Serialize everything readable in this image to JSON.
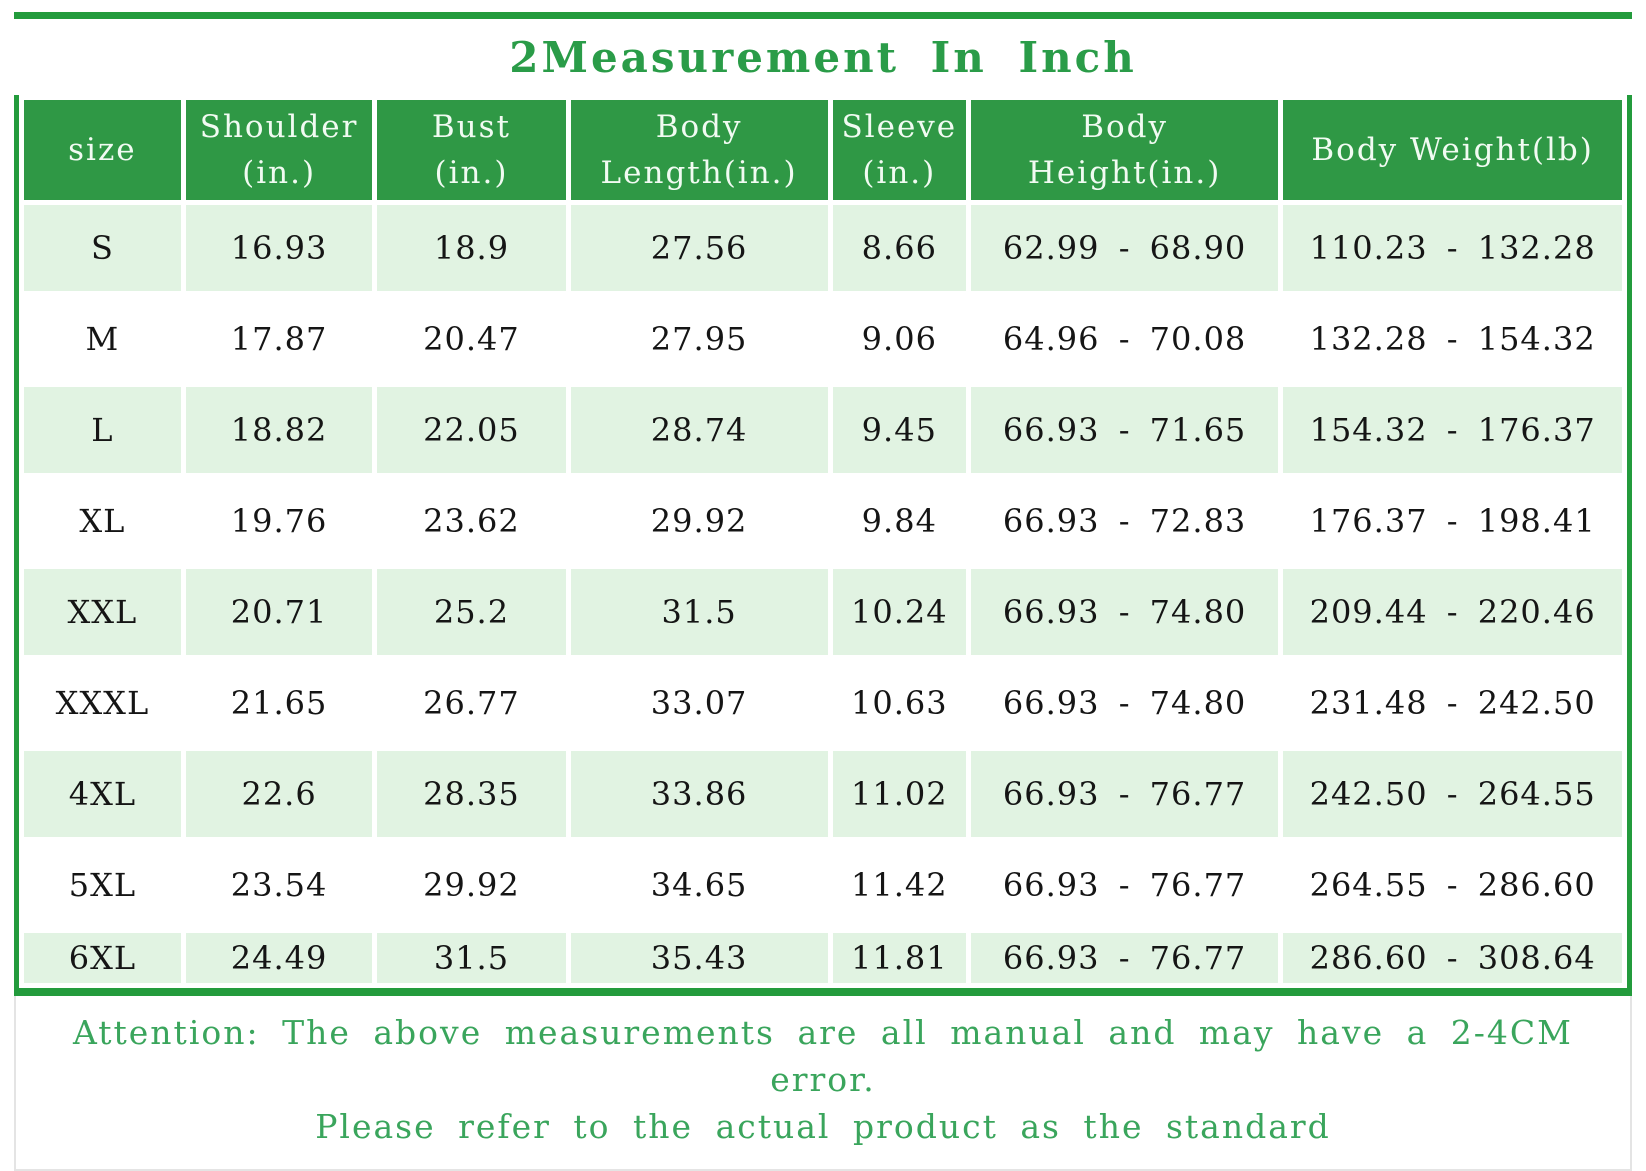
{
  "page": {
    "title": "2Measurement In Inch"
  },
  "colors": {
    "border_green": "#239b3c",
    "header_green": "#2f9845",
    "row_light_green": "#e1f3e2",
    "title_green": "#2a9c48",
    "footer_text_green": "#3aa55c",
    "cell_text": "#151515",
    "header_text": "#f1fbf2"
  },
  "table": {
    "columns": [
      {
        "key": "size",
        "lines": [
          "size"
        ]
      },
      {
        "key": "shoulder",
        "lines": [
          "Shoulder",
          "(in.)"
        ]
      },
      {
        "key": "bust",
        "lines": [
          "Bust",
          "(in.)"
        ]
      },
      {
        "key": "body_length",
        "lines": [
          "Body",
          "Length(in.)"
        ]
      },
      {
        "key": "sleeve",
        "lines": [
          "Sleeve",
          "(in.)"
        ]
      },
      {
        "key": "body_height",
        "lines": [
          "Body",
          "Height(in.)"
        ]
      },
      {
        "key": "body_weight",
        "lines": [
          "Body Weight(lb)"
        ]
      }
    ],
    "rows": [
      {
        "size": "S",
        "values": [
          "16.93",
          "18.9",
          "27.56",
          "8.66",
          "62.99 - 68.90",
          "110.23 - 132.28"
        ]
      },
      {
        "size": "M",
        "values": [
          "17.87",
          "20.47",
          "27.95",
          "9.06",
          "64.96 - 70.08",
          "132.28 - 154.32"
        ]
      },
      {
        "size": "L",
        "values": [
          "18.82",
          "22.05",
          "28.74",
          "9.45",
          "66.93 - 71.65",
          "154.32 - 176.37"
        ]
      },
      {
        "size": "XL",
        "values": [
          "19.76",
          "23.62",
          "29.92",
          "9.84",
          "66.93 - 72.83",
          "176.37 - 198.41"
        ]
      },
      {
        "size": "XXL",
        "values": [
          "20.71",
          "25.2",
          "31.5",
          "10.24",
          "66.93 - 74.80",
          "209.44 - 220.46"
        ]
      },
      {
        "size": "XXXL",
        "values": [
          "21.65",
          "26.77",
          "33.07",
          "10.63",
          "66.93 - 74.80",
          "231.48 - 242.50"
        ]
      },
      {
        "size": "4XL",
        "values": [
          "22.6",
          "28.35",
          "33.86",
          "11.02",
          "66.93 - 76.77",
          "242.50 - 264.55"
        ]
      },
      {
        "size": "5XL",
        "values": [
          "23.54",
          "29.92",
          "34.65",
          "11.42",
          "66.93 - 76.77",
          "264.55 - 286.60"
        ]
      },
      {
        "size": "6XL",
        "values": [
          "24.49",
          "31.5",
          "35.43",
          "11.81",
          "66.93 - 76.77",
          "286.60 - 308.64"
        ]
      }
    ]
  },
  "footer": {
    "line1": "Attention: The above measurements are all manual and may have a 2-4CM error.",
    "line2": "Please refer to the actual product as the standard"
  },
  "chart_data": {
    "type": "table",
    "title": "2Measurement In Inch",
    "columns": [
      "size",
      "Shoulder (in.)",
      "Bust (in.)",
      "Body Length(in.)",
      "Sleeve (in.)",
      "Body Height(in.)",
      "Body Weight(lb)"
    ],
    "rows": [
      [
        "S",
        "16.93",
        "18.9",
        "27.56",
        "8.66",
        "62.99 - 68.90",
        "110.23 - 132.28"
      ],
      [
        "M",
        "17.87",
        "20.47",
        "27.95",
        "9.06",
        "64.96 - 70.08",
        "132.28 - 154.32"
      ],
      [
        "L",
        "18.82",
        "22.05",
        "28.74",
        "9.45",
        "66.93 - 71.65",
        "154.32 - 176.37"
      ],
      [
        "XL",
        "19.76",
        "23.62",
        "29.92",
        "9.84",
        "66.93 - 72.83",
        "176.37 - 198.41"
      ],
      [
        "XXL",
        "20.71",
        "25.2",
        "31.5",
        "10.24",
        "66.93 - 74.80",
        "209.44 - 220.46"
      ],
      [
        "XXXL",
        "21.65",
        "26.77",
        "33.07",
        "10.63",
        "66.93 - 74.80",
        "231.48 - 242.50"
      ],
      [
        "4XL",
        "22.6",
        "28.35",
        "33.86",
        "11.02",
        "66.93 - 76.77",
        "242.50 - 264.55"
      ],
      [
        "5XL",
        "23.54",
        "29.92",
        "34.65",
        "11.42",
        "66.93 - 76.77",
        "264.55 - 286.60"
      ],
      [
        "6XL",
        "24.49",
        "31.5",
        "35.43",
        "11.81",
        "66.93 - 76.77",
        "286.60 - 308.64"
      ]
    ],
    "annotations": [
      "Attention: The above measurements are all manual and may have a 2-4CM error.",
      "Please refer to the actual product as the standard"
    ],
    "layout_hints": {
      "header_background": "#2f9845",
      "alternating_rows": true,
      "grid": "cell-gap-white"
    }
  }
}
